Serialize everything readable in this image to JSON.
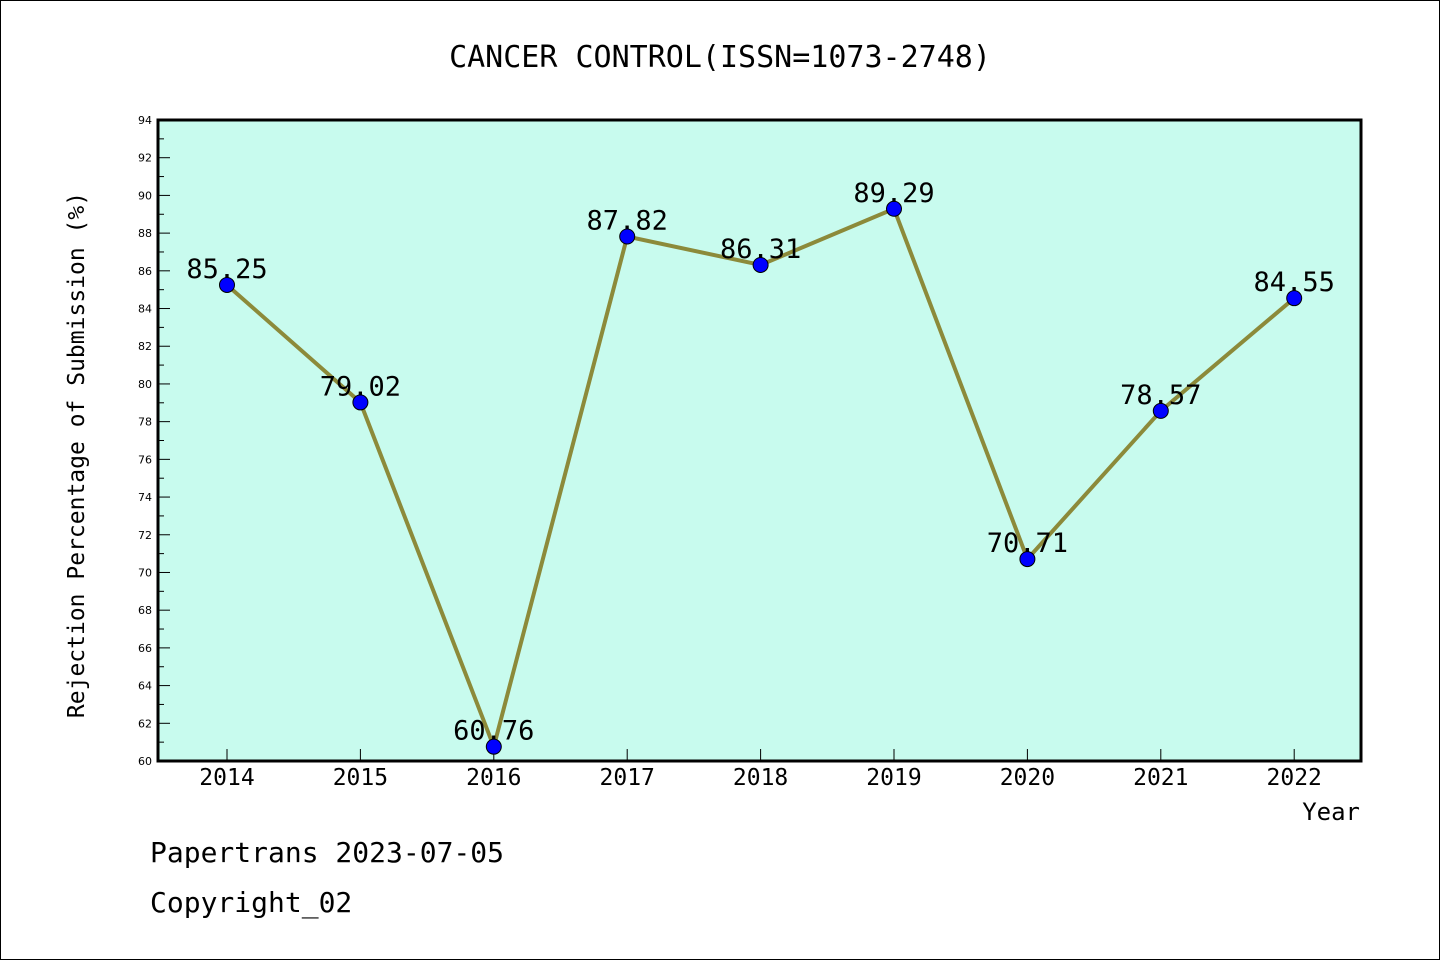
{
  "chart_data": {
    "type": "line",
    "title": "CANCER CONTROL(ISSN=1073-2748)",
    "xlabel": "Year",
    "ylabel": "Rejection Percentage of Submission (%)",
    "categories": [
      "2014",
      "2015",
      "2016",
      "2017",
      "2018",
      "2019",
      "2020",
      "2021",
      "2022"
    ],
    "series": [
      {
        "values": [
          85.25,
          79.02,
          60.76,
          87.82,
          86.31,
          89.29,
          70.71,
          78.57,
          84.55
        ]
      }
    ],
    "data_labels": [
      "85.25",
      "79.02",
      "60.76",
      "87.82",
      "86.31",
      "89.29",
      "70.71",
      "78.57",
      "84.55"
    ],
    "ylim": [
      60,
      94
    ],
    "yticks": [
      "60",
      "62",
      "64",
      "66",
      "68",
      "70",
      "72",
      "74",
      "76",
      "78",
      "80",
      "82",
      "84",
      "86",
      "88",
      "90",
      "92",
      "94"
    ],
    "grid": false,
    "legend": "none",
    "colors": {
      "plot_background": "#c8fbee",
      "line": "#8c8a3a",
      "marker": "#0000ff"
    }
  },
  "footer": {
    "line1": "Papertrans 2023-07-05",
    "line2": "Copyright_02"
  }
}
